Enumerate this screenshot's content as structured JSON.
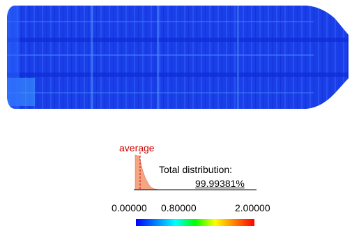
{
  "histogram": {
    "average_label": "average",
    "total_label": "Total distribution:",
    "total_value": "99.99381%",
    "average_color": "#cc0000",
    "fill_color": "#f4a582"
  },
  "legend": {
    "ticks": [
      "0.00000",
      "0.80000",
      "2.00000"
    ],
    "gradient": [
      "#0000ff",
      "#0080ff",
      "#00ffff",
      "#00ff00",
      "#ffff00",
      "#ff8000",
      "#ff0000"
    ]
  },
  "view": {
    "background": "#ffffff",
    "hull_base_color": "#1a3ee8"
  }
}
